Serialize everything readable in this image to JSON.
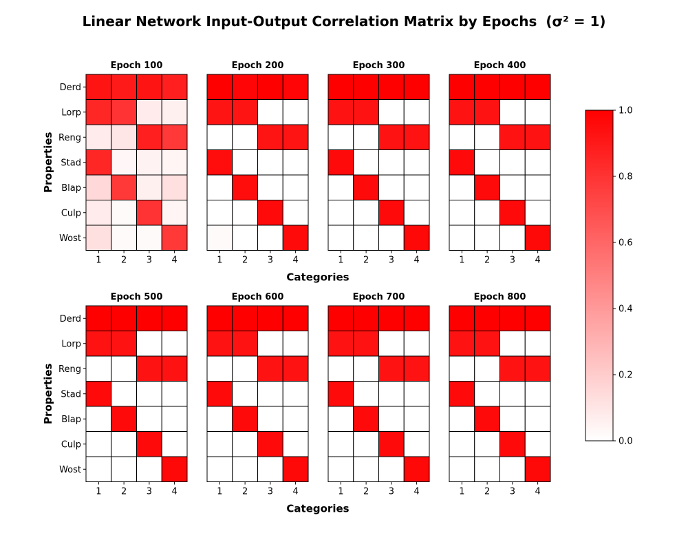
{
  "chart_data": {
    "type": "heatmap",
    "title": "Linear Network Input-Output Correlation Matrix by Epochs",
    "title_suffix": "(σ² = 1)",
    "xlabel": "Categories",
    "ylabel": "Properties",
    "x_categories": [
      "1",
      "2",
      "3",
      "4"
    ],
    "y_categories": [
      "Derd",
      "Lorp",
      "Reng",
      "Stad",
      "Blap",
      "Culp",
      "Wost"
    ],
    "colormap": {
      "low": "#ffffff",
      "high": "#ff0000"
    },
    "colorbar": {
      "range": [
        0,
        1
      ],
      "ticks": [
        "0.0",
        "0.2",
        "0.4",
        "0.6",
        "0.8",
        "1.0"
      ]
    },
    "panels": [
      {
        "title": "Epoch 100",
        "values": [
          [
            0.92,
            0.9,
            0.92,
            0.88
          ],
          [
            0.85,
            0.8,
            0.08,
            0.06
          ],
          [
            0.08,
            0.1,
            0.88,
            0.78
          ],
          [
            0.85,
            0.03,
            0.05,
            0.04
          ],
          [
            0.15,
            0.78,
            0.06,
            0.12
          ],
          [
            0.08,
            0.02,
            0.8,
            0.04
          ],
          [
            0.12,
            0.02,
            0.02,
            0.78
          ]
        ]
      },
      {
        "title": "Epoch 200",
        "values": [
          [
            1.0,
            0.98,
            1.0,
            0.98
          ],
          [
            0.92,
            0.92,
            0.0,
            0.0
          ],
          [
            0.0,
            0.0,
            0.92,
            0.92
          ],
          [
            0.95,
            0.0,
            0.0,
            0.0
          ],
          [
            0.0,
            0.95,
            0.0,
            0.0
          ],
          [
            0.0,
            0.0,
            0.96,
            0.0
          ],
          [
            0.02,
            0.0,
            0.0,
            0.96
          ]
        ]
      },
      {
        "title": "Epoch 300",
        "values": [
          [
            1.0,
            1.0,
            1.0,
            1.0
          ],
          [
            0.93,
            0.93,
            0.0,
            0.0
          ],
          [
            0.0,
            0.0,
            0.93,
            0.93
          ],
          [
            0.96,
            0.0,
            0.0,
            0.0
          ],
          [
            0.0,
            0.96,
            0.0,
            0.0
          ],
          [
            0.0,
            0.0,
            0.96,
            0.0
          ],
          [
            0.0,
            0.0,
            0.0,
            0.97
          ]
        ]
      },
      {
        "title": "Epoch 400",
        "values": [
          [
            1.0,
            1.0,
            1.0,
            1.0
          ],
          [
            0.93,
            0.93,
            0.0,
            0.0
          ],
          [
            0.0,
            0.0,
            0.93,
            0.93
          ],
          [
            0.96,
            0.0,
            0.0,
            0.0
          ],
          [
            0.0,
            0.96,
            0.0,
            0.0
          ],
          [
            0.0,
            0.0,
            0.96,
            0.0
          ],
          [
            0.0,
            0.0,
            0.0,
            0.97
          ]
        ]
      },
      {
        "title": "Epoch 500",
        "values": [
          [
            1.0,
            1.0,
            1.0,
            1.0
          ],
          [
            0.93,
            0.93,
            0.0,
            0.0
          ],
          [
            0.0,
            0.0,
            0.93,
            0.93
          ],
          [
            0.96,
            0.0,
            0.0,
            0.0
          ],
          [
            0.0,
            0.96,
            0.0,
            0.0
          ],
          [
            0.0,
            0.0,
            0.96,
            0.0
          ],
          [
            0.0,
            0.0,
            0.0,
            0.97
          ]
        ]
      },
      {
        "title": "Epoch 600",
        "values": [
          [
            1.0,
            1.0,
            1.0,
            1.0
          ],
          [
            0.93,
            0.93,
            0.0,
            0.0
          ],
          [
            0.0,
            0.0,
            0.93,
            0.93
          ],
          [
            0.96,
            0.0,
            0.0,
            0.0
          ],
          [
            0.0,
            0.96,
            0.0,
            0.0
          ],
          [
            0.0,
            0.0,
            0.96,
            0.0
          ],
          [
            0.0,
            0.0,
            0.0,
            0.97
          ]
        ]
      },
      {
        "title": "Epoch 700",
        "values": [
          [
            1.0,
            1.0,
            1.0,
            1.0
          ],
          [
            0.93,
            0.93,
            0.0,
            0.0
          ],
          [
            0.0,
            0.0,
            0.93,
            0.93
          ],
          [
            0.96,
            0.0,
            0.0,
            0.0
          ],
          [
            0.0,
            0.96,
            0.0,
            0.0
          ],
          [
            0.0,
            0.0,
            0.96,
            0.0
          ],
          [
            0.0,
            0.0,
            0.0,
            0.97
          ]
        ]
      },
      {
        "title": "Epoch 800",
        "values": [
          [
            1.0,
            1.0,
            1.0,
            1.0
          ],
          [
            0.93,
            0.93,
            0.0,
            0.0
          ],
          [
            0.0,
            0.0,
            0.93,
            0.93
          ],
          [
            0.96,
            0.0,
            0.0,
            0.0
          ],
          [
            0.0,
            0.96,
            0.0,
            0.0
          ],
          [
            0.0,
            0.0,
            0.96,
            0.0
          ],
          [
            0.0,
            0.0,
            0.0,
            0.97
          ]
        ]
      }
    ]
  }
}
